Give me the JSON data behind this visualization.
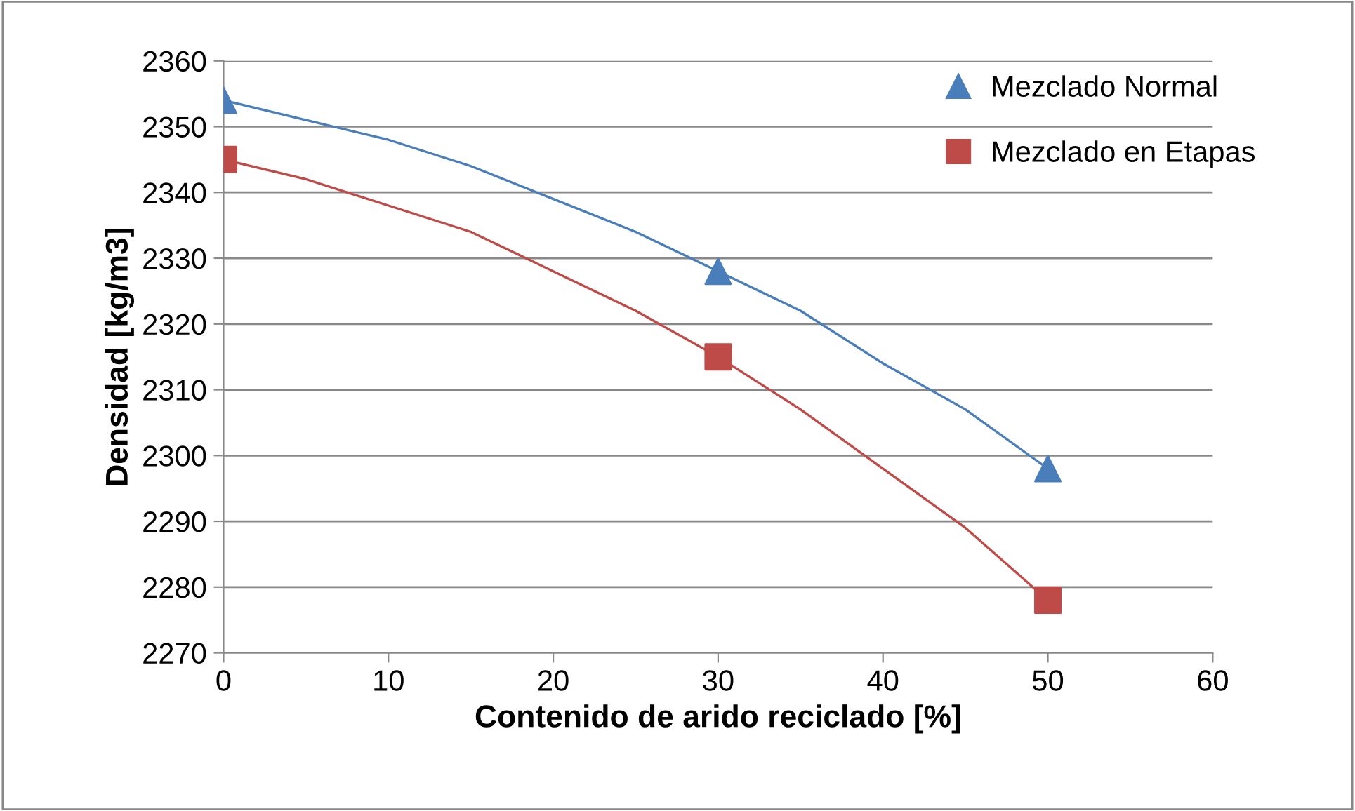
{
  "chart_data": {
    "type": "scatter",
    "xlabel": "Contenido de arido reciclado [%]",
    "ylabel": "Densidad [kg/m3]",
    "series": [
      {
        "type": "line",
        "color": "#4a7ebb",
        "marker": "none",
        "x": [
          0,
          5,
          10,
          15,
          20,
          25,
          30,
          35,
          40,
          45,
          50
        ],
        "values": [
          2354,
          2351,
          2348,
          2344,
          2339,
          2334,
          2328,
          2322,
          2314,
          2307,
          2298
        ]
      },
      {
        "type": "line",
        "color": "#be4b48",
        "marker": "none",
        "x": [
          0,
          5,
          10,
          15,
          20,
          25,
          30,
          35,
          40,
          45,
          50
        ],
        "values": [
          2345,
          2342,
          2338,
          2334,
          2328,
          2322,
          2315,
          2307,
          2298,
          2289,
          2278
        ]
      },
      {
        "name": "Mezclado Normal",
        "color": "#4a7ebb",
        "marker": "triangle",
        "x": [
          0,
          30,
          50
        ],
        "values": [
          2354,
          2328,
          2298
        ]
      },
      {
        "name": "Mezclado en Etapas",
        "color": "#be4b48",
        "marker": "square",
        "x": [
          0,
          30,
          50
        ],
        "values": [
          2345,
          2315,
          2278
        ]
      }
    ],
    "xlim": [
      0,
      60
    ],
    "xticks": [
      0,
      10,
      20,
      30,
      40,
      50,
      60
    ],
    "ylim": [
      2270,
      2360
    ],
    "yticks": [
      2270,
      2280,
      2290,
      2300,
      2310,
      2320,
      2330,
      2340,
      2350,
      2360
    ],
    "grid": "y",
    "legend": "top right"
  }
}
